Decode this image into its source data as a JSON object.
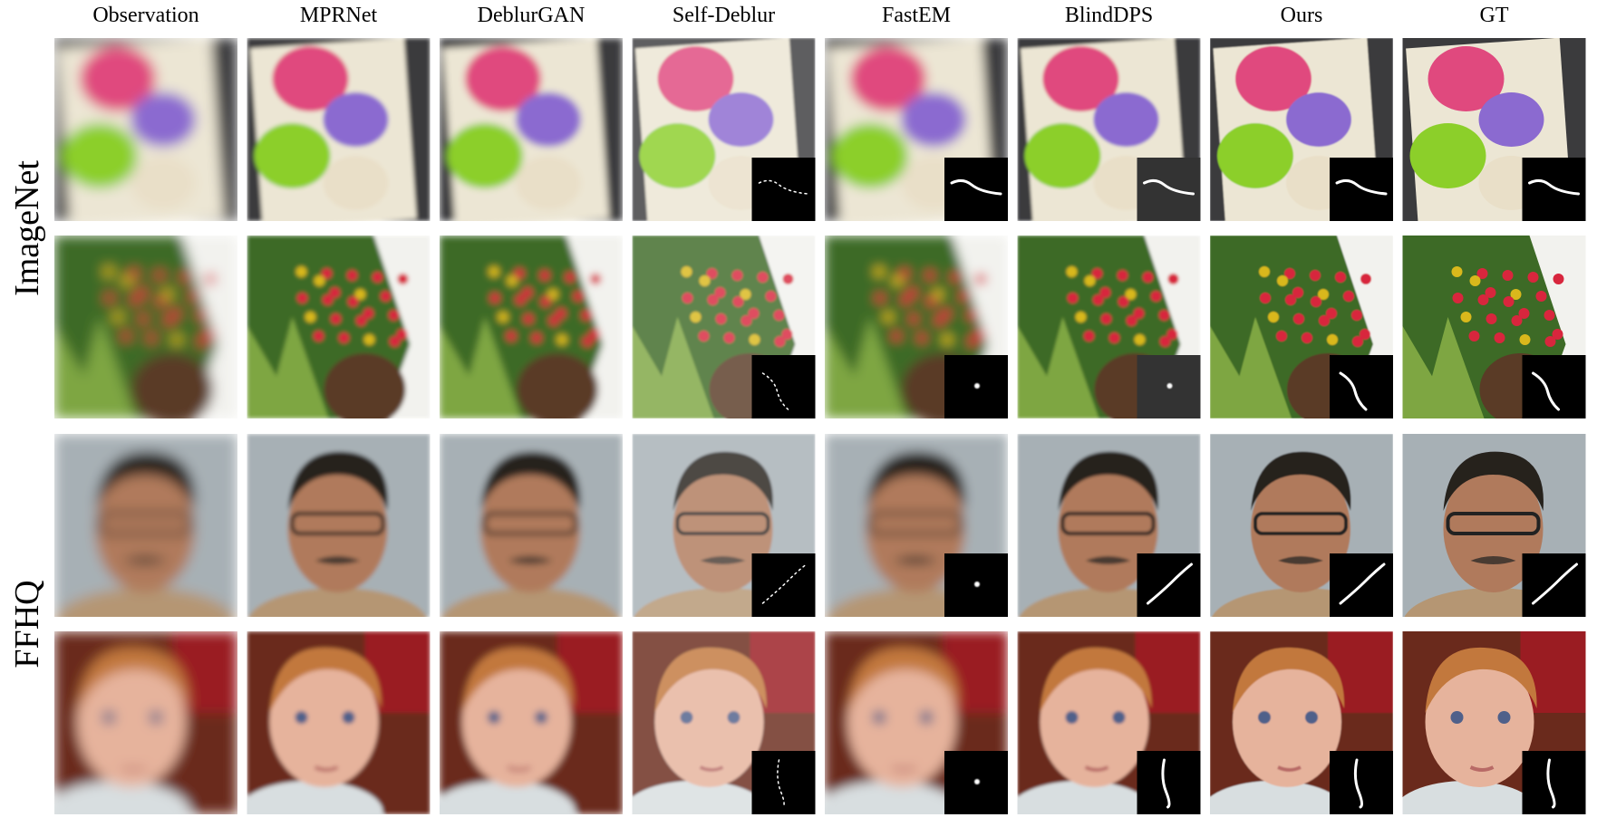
{
  "columns": [
    "Observation",
    "MPRNet",
    "DeblurGAN",
    "Self-Deblur",
    "FastEM",
    "BlindDPS",
    "Ours",
    "GT"
  ],
  "row_groups": [
    "ImageNet",
    "FFHQ"
  ]
}
